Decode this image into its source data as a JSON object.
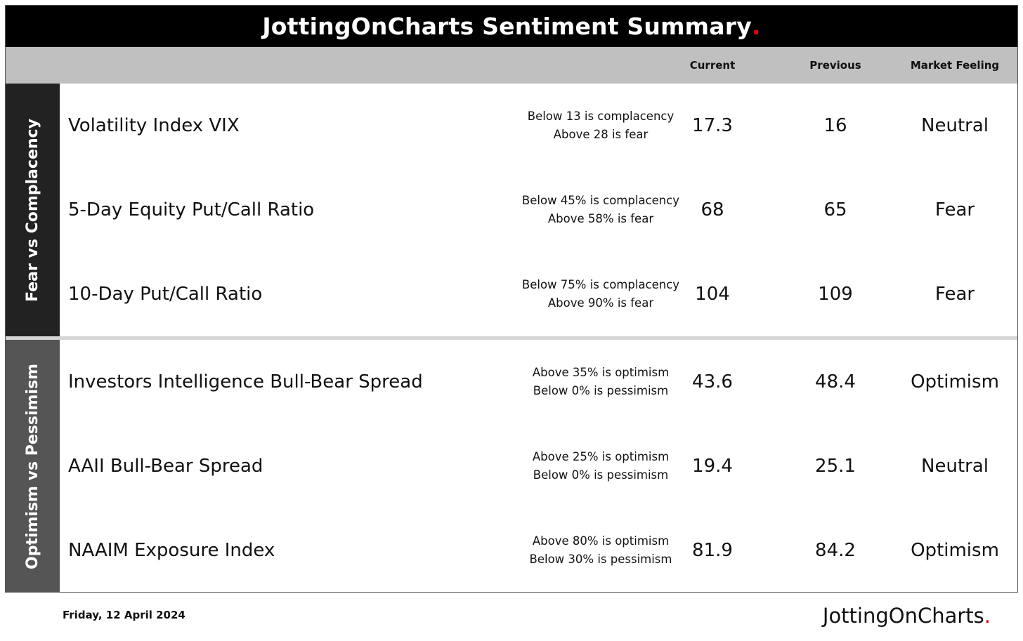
{
  "title": {
    "text": "JottingOnCharts Sentiment Summary",
    "dot": "."
  },
  "columns": {
    "current": "Current",
    "previous": "Previous",
    "feeling": "Market Feeling"
  },
  "sections": [
    {
      "label": "Fear vs Complacency",
      "rows": [
        {
          "name": "Volatility Index VIX",
          "threshold_1": "Below 13 is complacency",
          "threshold_2": "Above 28 is fear",
          "current": "17.3",
          "previous": "16",
          "feeling": "Neutral"
        },
        {
          "name": "5-Day Equity Put/Call Ratio",
          "threshold_1": "Below 45% is complacency",
          "threshold_2": "Above 58% is fear",
          "current": "68",
          "previous": "65",
          "feeling": "Fear"
        },
        {
          "name": "10-Day Put/Call Ratio",
          "threshold_1": "Below 75% is complacency",
          "threshold_2": "Above 90% is fear",
          "current": "104",
          "previous": "109",
          "feeling": "Fear"
        }
      ]
    },
    {
      "label": "Optimism vs Pessimism",
      "rows": [
        {
          "name": "Investors Intelligence Bull-Bear Spread",
          "threshold_1": "Above 35% is optimism",
          "threshold_2": "Below 0% is pessimism",
          "current": "43.6",
          "previous": "48.4",
          "feeling": "Optimism"
        },
        {
          "name": "AAII Bull-Bear Spread",
          "threshold_1": "Above 25% is optimism",
          "threshold_2": "Below 0% is pessimism",
          "current": "19.4",
          "previous": "25.1",
          "feeling": "Neutral"
        },
        {
          "name": "NAAIM Exposure Index",
          "threshold_1": "Above 80% is optimism",
          "threshold_2": "Below 30% is pessimism",
          "current": "81.9",
          "previous": "84.2",
          "feeling": "Optimism"
        }
      ]
    }
  ],
  "footer": {
    "date": "Friday, 12 April 2024",
    "brand": "JottingOnCharts",
    "brand_dot": "."
  },
  "colors": {
    "accent": "#e00000",
    "title_bg": "#000000",
    "header_bg": "#c0c0c0",
    "side_dark": "#222222",
    "side_gray": "#555555"
  }
}
